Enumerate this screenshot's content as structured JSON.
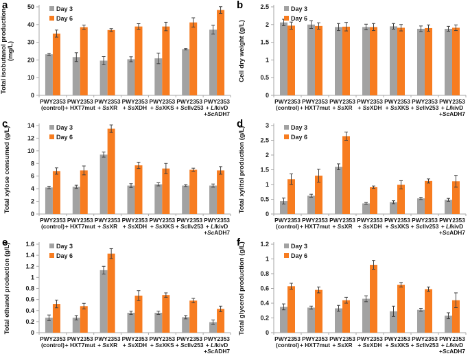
{
  "figure": {
    "background": "#ffffff",
    "colors": {
      "day3_bar": "#a2a2a2",
      "day6_bar": "#f77c20",
      "error_bar": "#3f3f3f",
      "axis_line": "#a6a6a6",
      "text": "#1a1a1a"
    },
    "legend_labels": [
      "Day 3",
      "Day 6"
    ]
  },
  "chart_data": [
    {
      "type": "bar",
      "panel_letter": "a",
      "ylabel_lines": [
        "Total isobutanol production",
        "(mg/L)"
      ],
      "ylim": [
        0,
        50
      ],
      "ytick_step": 10,
      "grid": false,
      "legend_position": "top-left-inside",
      "categories": [
        [
          "PWY2353",
          "(control)"
        ],
        [
          "PWY2353",
          "+ HXT7mut"
        ],
        [
          "PWY2353",
          "+ *Ss*XR"
        ],
        [
          "PWY2353",
          "+ *Ss*XDH"
        ],
        [
          "PWY2353",
          "+ *Ss*XKS"
        ],
        [
          "PWY2353",
          "+ *Sc*Ilv253"
        ],
        [
          "PWY2353",
          "+ *Ll*kivD",
          "+*Sc*ADH7"
        ]
      ],
      "series": [
        {
          "name": "Day 3",
          "values": [
            23.2,
            21.6,
            19.6,
            20.4,
            20.9,
            26.1,
            37.1
          ],
          "errors": [
            0.6,
            2.5,
            2.3,
            1.4,
            3.0,
            0.4,
            2.5
          ]
        },
        {
          "name": "Day 6",
          "values": [
            34.9,
            38.5,
            36.9,
            38.9,
            38.9,
            41.2,
            48.2
          ],
          "errors": [
            2.0,
            1.2,
            0.8,
            1.6,
            2.4,
            2.6,
            1.9
          ]
        }
      ]
    },
    {
      "type": "bar",
      "panel_letter": "b",
      "ylabel_lines": [
        "Cell dry weight (g/L)"
      ],
      "ylim": [
        0,
        2.5
      ],
      "ytick_step": 0.5,
      "grid": false,
      "legend_position": "top-left-inside",
      "categories": [
        [
          "PWY2353",
          "(control)"
        ],
        [
          "PWY2353",
          "+ HXT7mut"
        ],
        [
          "PWY2353",
          "+ *Ss*XR"
        ],
        [
          "PWY2353",
          "+ *Ss*XDH"
        ],
        [
          "PWY2353",
          "+ *Ss*XKS"
        ],
        [
          "PWY2353",
          "+ *Sc*Ilv253"
        ],
        [
          "PWY2353",
          "+ *Ll*kivD",
          "+*Sc*ADH7"
        ]
      ],
      "series": [
        {
          "name": "Day 3",
          "values": [
            2.06,
            2.0,
            1.93,
            1.93,
            1.95,
            1.88,
            1.88
          ],
          "errors": [
            0.09,
            0.11,
            0.1,
            0.08,
            0.08,
            0.08,
            0.07
          ]
        },
        {
          "name": "Day 6",
          "values": [
            1.97,
            1.96,
            1.94,
            1.93,
            1.91,
            1.9,
            1.91
          ],
          "errors": [
            0.1,
            0.09,
            0.12,
            0.1,
            0.09,
            0.09,
            0.08
          ]
        }
      ]
    },
    {
      "type": "bar",
      "panel_letter": "c",
      "ylabel_lines": [
        "Total xylose consumed (g/L)"
      ],
      "ylim": [
        0,
        14
      ],
      "ytick_step": 2,
      "grid": false,
      "legend_position": "top-left-inside",
      "categories": [
        [
          "PWY2353",
          "(control)"
        ],
        [
          "PWY2353",
          "+ HXT7mut"
        ],
        [
          "PWY2353",
          "+ *Ss*XR"
        ],
        [
          "PWY2353",
          "+ *Ss*XDH"
        ],
        [
          "PWY2353",
          "+ *Ss*XKS"
        ],
        [
          "PWY2353",
          "+ *Sc*Ilv253"
        ],
        [
          "PWY2353",
          "+ *Ll*kivD",
          "+*Sc*ADH7"
        ]
      ],
      "series": [
        {
          "name": "Day 3",
          "values": [
            4.2,
            4.3,
            9.4,
            4.5,
            4.7,
            4.5,
            4.5
          ],
          "errors": [
            0.2,
            0.25,
            0.4,
            0.3,
            0.25,
            0.15,
            0.25
          ]
        },
        {
          "name": "Day 6",
          "values": [
            6.8,
            6.9,
            13.5,
            7.7,
            7.2,
            7.0,
            6.9
          ],
          "errors": [
            0.5,
            0.7,
            0.6,
            0.5,
            0.8,
            0.25,
            0.6
          ]
        }
      ]
    },
    {
      "type": "bar",
      "panel_letter": "d",
      "ylabel_lines": [
        "Total xylitol production (g/L)"
      ],
      "ylim": [
        0,
        3
      ],
      "ytick_step": 0.5,
      "grid": false,
      "legend_position": "top-left-inside",
      "categories": [
        [
          "PWY2353",
          "(control)"
        ],
        [
          "PWY2353",
          "+ HXT7mut"
        ],
        [
          "PWY2353",
          "+ *Ss*XR"
        ],
        [
          "PWY2353",
          "+ *Ss*XDH"
        ],
        [
          "PWY2353",
          "+ *Ss*XKS"
        ],
        [
          "PWY2353",
          "+ *Sc*Ilv253"
        ],
        [
          "PWY2353",
          "+ *Ll*kivD",
          "+*Sc*ADH7"
        ]
      ],
      "series": [
        {
          "name": "Day 3",
          "values": [
            0.44,
            0.62,
            1.6,
            0.36,
            0.4,
            0.53,
            0.48
          ],
          "errors": [
            0.1,
            0.05,
            0.1,
            0.03,
            0.05,
            0.04,
            0.05
          ]
        },
        {
          "name": "Day 6",
          "values": [
            1.18,
            1.3,
            2.64,
            0.91,
            0.99,
            1.12,
            1.11
          ],
          "errors": [
            0.18,
            0.22,
            0.14,
            0.04,
            0.14,
            0.07,
            0.2
          ]
        }
      ]
    },
    {
      "type": "bar",
      "panel_letter": "e",
      "ylabel_lines": [
        "Total ethanol production (g/L)"
      ],
      "ylim": [
        0,
        1.6
      ],
      "ytick_step": 0.2,
      "grid": false,
      "legend_position": "top-left-inside",
      "categories": [
        [
          "PWY2353",
          "(control)"
        ],
        [
          "PWY2353",
          "+ HXT7mut"
        ],
        [
          "PWY2353",
          "+ *Ss*XR"
        ],
        [
          "PWY2353",
          "+ *Ss*XDH"
        ],
        [
          "PWY2353",
          "+ *Ss*XKS"
        ],
        [
          "PWY2353",
          "+ *Sc*Ilv253"
        ],
        [
          "PWY2353",
          "+ *Ll*kivD",
          "+*Sc*ADH7"
        ]
      ],
      "series": [
        {
          "name": "Day 3",
          "values": [
            0.27,
            0.27,
            1.13,
            0.36,
            0.36,
            0.28,
            0.19
          ],
          "errors": [
            0.05,
            0.04,
            0.07,
            0.03,
            0.03,
            0.03,
            0.04
          ]
        },
        {
          "name": "Day 6",
          "values": [
            0.52,
            0.48,
            1.43,
            0.67,
            0.68,
            0.58,
            0.43
          ],
          "errors": [
            0.07,
            0.05,
            0.09,
            0.09,
            0.04,
            0.04,
            0.05
          ]
        }
      ]
    },
    {
      "type": "bar",
      "panel_letter": "f",
      "ylabel_lines": [
        "Total glycerol production (g/L)"
      ],
      "ylim": [
        0,
        1.2
      ],
      "ytick_step": 0.2,
      "grid": false,
      "legend_position": "top-left-inside",
      "categories": [
        [
          "PWY2353",
          "(control)"
        ],
        [
          "PWY2353",
          "+ HXT7mut"
        ],
        [
          "PWY2353",
          "+ *Ss*XR"
        ],
        [
          "PWY2353",
          "+ *Ss*XDH"
        ],
        [
          "PWY2353",
          "+ *Ss*XKS"
        ],
        [
          "PWY2353",
          "+ *Sc*Ilv253"
        ],
        [
          "PWY2353",
          "+ *Ll*kivD",
          "+*Sc*ADH7"
        ]
      ],
      "series": [
        {
          "name": "Day 3",
          "values": [
            0.35,
            0.34,
            0.33,
            0.46,
            0.29,
            0.31,
            0.23
          ],
          "errors": [
            0.04,
            0.02,
            0.04,
            0.04,
            0.07,
            0.02,
            0.04
          ]
        },
        {
          "name": "Day 6",
          "values": [
            0.63,
            0.58,
            0.44,
            0.92,
            0.65,
            0.59,
            0.44
          ],
          "errors": [
            0.04,
            0.04,
            0.04,
            0.06,
            0.03,
            0.03,
            0.1
          ]
        }
      ]
    }
  ]
}
